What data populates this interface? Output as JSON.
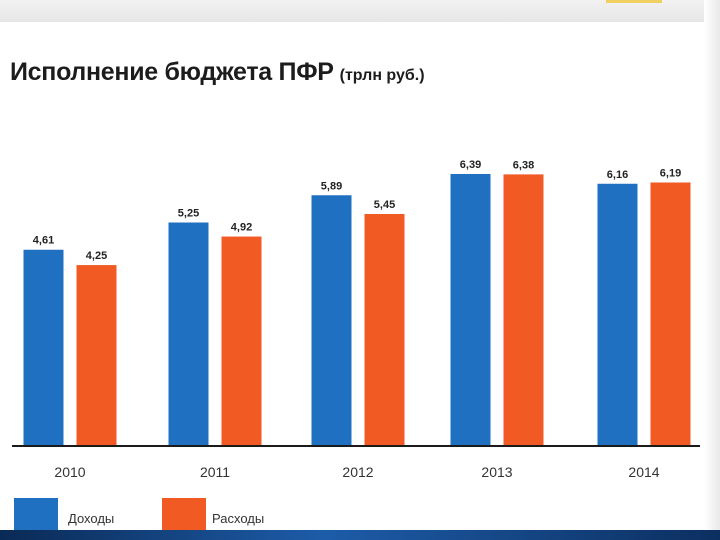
{
  "chart_data": {
    "type": "bar",
    "title": "Исполнение бюджета ПФР",
    "unit": "(трлн руб.)",
    "categories": [
      "2010",
      "2011",
      "2012",
      "2013",
      "2014"
    ],
    "series": [
      {
        "name": "Доходы",
        "color": "#1f70c1",
        "values": [
          4.61,
          5.25,
          5.89,
          6.39,
          6.16
        ],
        "labels": [
          "4,61",
          "5,25",
          "5,89",
          "6,39",
          "6,16"
        ]
      },
      {
        "name": "Расходы",
        "color": "#f25a24",
        "values": [
          4.25,
          4.92,
          5.45,
          6.38,
          6.19
        ],
        "labels": [
          "4,25",
          "4,92",
          "5,45",
          "6,38",
          "6,19"
        ]
      }
    ],
    "ylim": [
      0,
      7
    ],
    "grid": false,
    "legend": "bottom-left",
    "xlabel": "",
    "ylabel": ""
  }
}
